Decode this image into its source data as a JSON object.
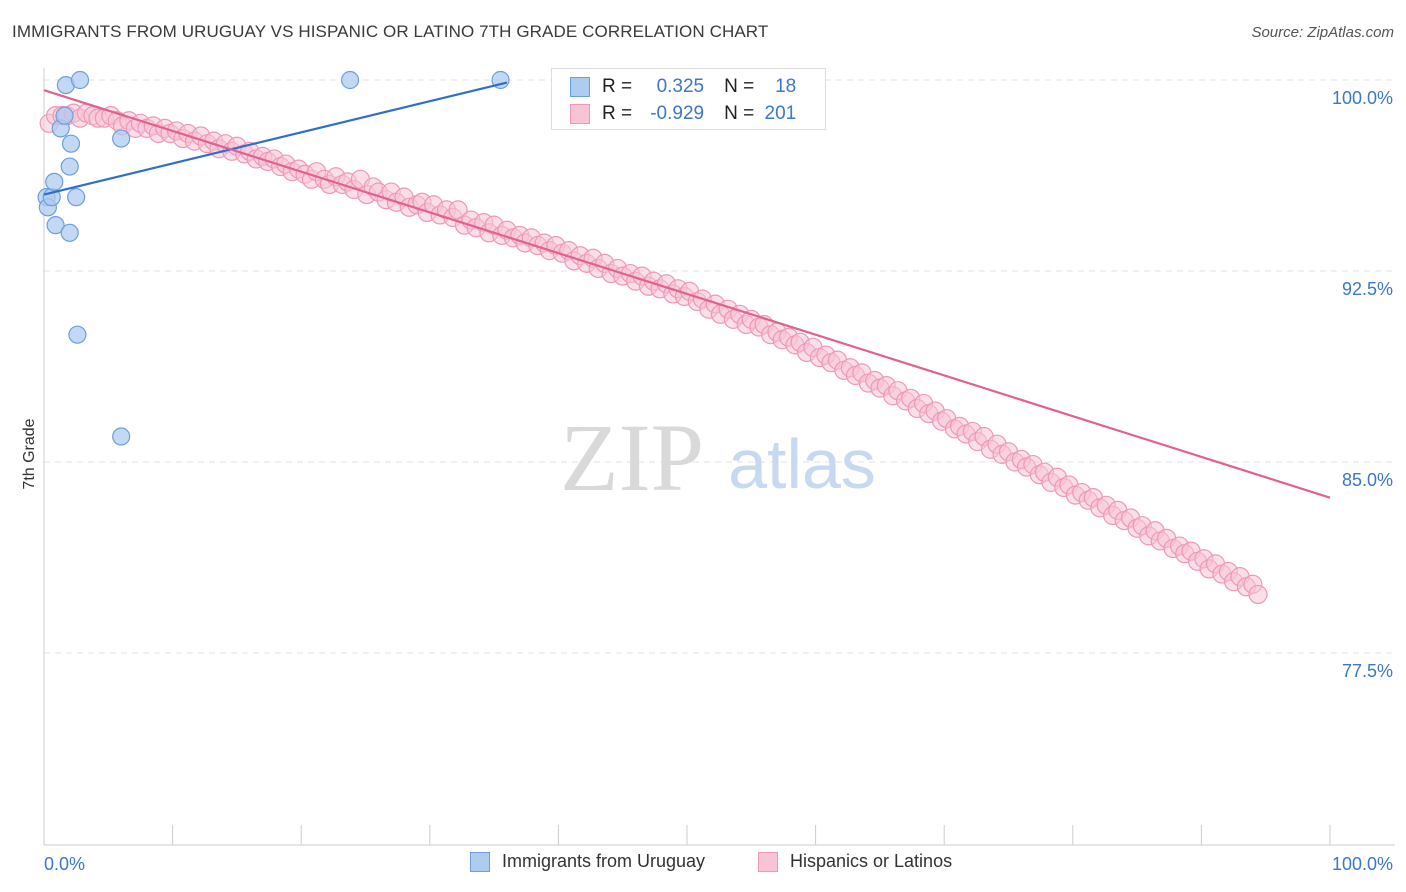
{
  "title": "IMMIGRANTS FROM URUGUAY VS HISPANIC OR LATINO 7TH GRADE CORRELATION CHART",
  "source": "Source: ZipAtlas.com",
  "watermark": {
    "zip": "ZIP",
    "atlas": "atlas"
  },
  "legend": {
    "rows": [
      {
        "r_label": "R =",
        "r_value": "0.325",
        "n_label": "N =",
        "n_value": "18"
      },
      {
        "r_label": "R =",
        "r_value": "-0.929",
        "n_label": "N =",
        "n_value": "201"
      }
    ]
  },
  "bottom_legend": {
    "uruguay": "Immigrants from Uruguay",
    "hispanic": "Hispanics or Latinos"
  },
  "colors": {
    "blue_fill": "#aecbf0",
    "blue_stroke": "#6d9fdd",
    "blue_line": "#2f6fcb",
    "pink_fill": "#f8c4d5",
    "pink_stroke": "#ee98b6",
    "pink_line": "#e0628f",
    "axis_text": "#3a78c9",
    "grid": "#e2e2e2"
  },
  "chart_data": {
    "type": "scatter",
    "title": "IMMIGRANTS FROM URUGUAY VS HISPANIC OR LATINO 7TH GRADE CORRELATION CHART",
    "xlabel": "",
    "ylabel": "7th Grade",
    "xlim": [
      0,
      100
    ],
    "ylim": [
      70.0,
      101.2
    ],
    "x_tick_labels": [
      "0.0%",
      "100.0%"
    ],
    "y_ticks": [
      100.0,
      92.5,
      85.0,
      77.5
    ],
    "y_tick_labels": [
      "100.0%",
      "92.5%",
      "85.0%",
      "77.5%"
    ],
    "grid": true,
    "series": [
      {
        "name": "Immigrants from Uruguay",
        "color": "#6d9fdd",
        "points": [
          [
            0.2,
            95.4
          ],
          [
            0.3,
            95.0
          ],
          [
            0.6,
            95.4
          ],
          [
            0.8,
            96.0
          ],
          [
            0.9,
            94.3
          ],
          [
            1.3,
            98.1
          ],
          [
            1.6,
            98.6
          ],
          [
            1.7,
            99.8
          ],
          [
            2.0,
            96.6
          ],
          [
            2.0,
            94.0
          ],
          [
            2.1,
            97.5
          ],
          [
            2.5,
            95.4
          ],
          [
            2.6,
            90.0
          ],
          [
            2.8,
            100.0
          ],
          [
            6.0,
            97.7
          ],
          [
            6.0,
            86.0
          ],
          [
            23.8,
            100.0
          ],
          [
            35.5,
            100.0
          ]
        ],
        "trend": [
          [
            0.0,
            95.5
          ],
          [
            36.0,
            99.9
          ]
        ]
      },
      {
        "name": "Hispanics or Latinos",
        "color": "#ee98b6",
        "points": [
          [
            0.4,
            98.3
          ],
          [
            0.9,
            98.6
          ],
          [
            1.4,
            98.6
          ],
          [
            1.8,
            98.6
          ],
          [
            2.3,
            98.7
          ],
          [
            2.8,
            98.5
          ],
          [
            3.3,
            98.7
          ],
          [
            3.8,
            98.6
          ],
          [
            4.2,
            98.5
          ],
          [
            4.7,
            98.5
          ],
          [
            5.2,
            98.6
          ],
          [
            5.7,
            98.4
          ],
          [
            6.1,
            98.2
          ],
          [
            6.6,
            98.4
          ],
          [
            7.1,
            98.1
          ],
          [
            7.5,
            98.3
          ],
          [
            8.0,
            98.1
          ],
          [
            8.5,
            98.2
          ],
          [
            8.9,
            97.9
          ],
          [
            9.4,
            98.1
          ],
          [
            9.8,
            97.9
          ],
          [
            10.3,
            98.0
          ],
          [
            10.8,
            97.7
          ],
          [
            11.2,
            97.9
          ],
          [
            11.7,
            97.6
          ],
          [
            12.2,
            97.8
          ],
          [
            12.7,
            97.5
          ],
          [
            13.2,
            97.6
          ],
          [
            13.6,
            97.3
          ],
          [
            14.1,
            97.5
          ],
          [
            14.6,
            97.2
          ],
          [
            15.0,
            97.4
          ],
          [
            15.6,
            97.1
          ],
          [
            16.0,
            97.2
          ],
          [
            16.5,
            96.9
          ],
          [
            17.0,
            97.0
          ],
          [
            17.4,
            96.8
          ],
          [
            17.9,
            96.9
          ],
          [
            18.4,
            96.6
          ],
          [
            18.8,
            96.7
          ],
          [
            19.3,
            96.4
          ],
          [
            19.8,
            96.5
          ],
          [
            20.3,
            96.3
          ],
          [
            20.8,
            96.1
          ],
          [
            21.2,
            96.4
          ],
          [
            21.8,
            96.1
          ],
          [
            22.2,
            95.9
          ],
          [
            22.7,
            96.2
          ],
          [
            23.2,
            95.9
          ],
          [
            23.6,
            96.0
          ],
          [
            24.1,
            95.7
          ],
          [
            24.6,
            96.1
          ],
          [
            25.1,
            95.5
          ],
          [
            25.6,
            95.8
          ],
          [
            26.0,
            95.6
          ],
          [
            26.6,
            95.3
          ],
          [
            27.0,
            95.6
          ],
          [
            27.4,
            95.2
          ],
          [
            28.0,
            95.4
          ],
          [
            28.4,
            95.0
          ],
          [
            29.0,
            95.1
          ],
          [
            29.4,
            95.2
          ],
          [
            29.8,
            94.8
          ],
          [
            30.3,
            95.1
          ],
          [
            30.8,
            94.7
          ],
          [
            31.3,
            94.9
          ],
          [
            31.8,
            94.6
          ],
          [
            32.2,
            94.9
          ],
          [
            32.7,
            94.3
          ],
          [
            33.2,
            94.5
          ],
          [
            33.6,
            94.2
          ],
          [
            34.2,
            94.4
          ],
          [
            34.6,
            94.0
          ],
          [
            35.0,
            94.3
          ],
          [
            35.6,
            93.9
          ],
          [
            36.0,
            94.1
          ],
          [
            36.5,
            93.8
          ],
          [
            37.0,
            93.9
          ],
          [
            37.4,
            93.6
          ],
          [
            37.9,
            93.8
          ],
          [
            38.4,
            93.5
          ],
          [
            38.9,
            93.6
          ],
          [
            39.3,
            93.3
          ],
          [
            39.8,
            93.5
          ],
          [
            40.3,
            93.2
          ],
          [
            40.8,
            93.3
          ],
          [
            41.2,
            92.9
          ],
          [
            41.7,
            93.1
          ],
          [
            42.2,
            92.8
          ],
          [
            42.7,
            93.0
          ],
          [
            43.1,
            92.6
          ],
          [
            43.6,
            92.8
          ],
          [
            44.1,
            92.4
          ],
          [
            44.6,
            92.6
          ],
          [
            45.0,
            92.3
          ],
          [
            45.6,
            92.4
          ],
          [
            46.0,
            92.1
          ],
          [
            46.5,
            92.3
          ],
          [
            47.0,
            91.9
          ],
          [
            47.4,
            92.1
          ],
          [
            47.9,
            91.8
          ],
          [
            48.4,
            92.0
          ],
          [
            48.9,
            91.6
          ],
          [
            49.3,
            91.8
          ],
          [
            49.8,
            91.5
          ],
          [
            50.2,
            91.7
          ],
          [
            50.8,
            91.3
          ],
          [
            51.2,
            91.4
          ],
          [
            51.7,
            91.0
          ],
          [
            52.2,
            91.2
          ],
          [
            52.6,
            90.8
          ],
          [
            53.2,
            91.0
          ],
          [
            53.6,
            90.6
          ],
          [
            54.1,
            90.8
          ],
          [
            54.6,
            90.4
          ],
          [
            55.0,
            90.6
          ],
          [
            55.6,
            90.3
          ],
          [
            56.0,
            90.4
          ],
          [
            56.5,
            90.0
          ],
          [
            57.0,
            90.1
          ],
          [
            57.4,
            89.8
          ],
          [
            57.9,
            89.9
          ],
          [
            58.4,
            89.6
          ],
          [
            58.8,
            89.7
          ],
          [
            59.3,
            89.3
          ],
          [
            59.8,
            89.5
          ],
          [
            60.3,
            89.1
          ],
          [
            60.8,
            89.2
          ],
          [
            61.2,
            88.9
          ],
          [
            61.7,
            89.0
          ],
          [
            62.2,
            88.6
          ],
          [
            62.7,
            88.7
          ],
          [
            63.1,
            88.4
          ],
          [
            63.6,
            88.5
          ],
          [
            64.1,
            88.1
          ],
          [
            64.6,
            88.2
          ],
          [
            65.0,
            87.9
          ],
          [
            65.5,
            88.0
          ],
          [
            66.0,
            87.6
          ],
          [
            66.4,
            87.8
          ],
          [
            67.0,
            87.4
          ],
          [
            67.4,
            87.5
          ],
          [
            67.9,
            87.1
          ],
          [
            68.4,
            87.3
          ],
          [
            68.8,
            86.9
          ],
          [
            69.3,
            87.0
          ],
          [
            69.8,
            86.6
          ],
          [
            70.2,
            86.7
          ],
          [
            70.8,
            86.3
          ],
          [
            71.2,
            86.4
          ],
          [
            71.7,
            86.1
          ],
          [
            72.2,
            86.2
          ],
          [
            72.6,
            85.8
          ],
          [
            73.1,
            86.0
          ],
          [
            73.6,
            85.5
          ],
          [
            74.1,
            85.7
          ],
          [
            74.5,
            85.3
          ],
          [
            75.0,
            85.4
          ],
          [
            75.5,
            85.0
          ],
          [
            76.0,
            85.1
          ],
          [
            76.4,
            84.8
          ],
          [
            76.9,
            84.9
          ],
          [
            77.4,
            84.5
          ],
          [
            77.8,
            84.6
          ],
          [
            78.3,
            84.2
          ],
          [
            78.8,
            84.4
          ],
          [
            79.3,
            84.0
          ],
          [
            79.7,
            84.1
          ],
          [
            80.2,
            83.7
          ],
          [
            80.7,
            83.8
          ],
          [
            81.2,
            83.5
          ],
          [
            81.6,
            83.6
          ],
          [
            82.1,
            83.2
          ],
          [
            82.6,
            83.3
          ],
          [
            83.1,
            82.9
          ],
          [
            83.5,
            83.1
          ],
          [
            84.0,
            82.7
          ],
          [
            84.5,
            82.8
          ],
          [
            85.0,
            82.4
          ],
          [
            85.4,
            82.5
          ],
          [
            85.9,
            82.1
          ],
          [
            86.4,
            82.3
          ],
          [
            86.8,
            81.9
          ],
          [
            87.3,
            82.0
          ],
          [
            87.8,
            81.6
          ],
          [
            88.3,
            81.7
          ],
          [
            88.7,
            81.4
          ],
          [
            89.2,
            81.5
          ],
          [
            89.7,
            81.1
          ],
          [
            90.2,
            81.2
          ],
          [
            90.6,
            80.8
          ],
          [
            91.1,
            81.0
          ],
          [
            91.6,
            80.6
          ],
          [
            92.1,
            80.7
          ],
          [
            92.5,
            80.3
          ],
          [
            93.0,
            80.5
          ],
          [
            93.5,
            80.1
          ],
          [
            94.0,
            80.2
          ],
          [
            94.4,
            79.8
          ]
        ],
        "trend": [
          [
            0.0,
            99.6
          ],
          [
            100.0,
            83.6
          ]
        ]
      }
    ]
  }
}
